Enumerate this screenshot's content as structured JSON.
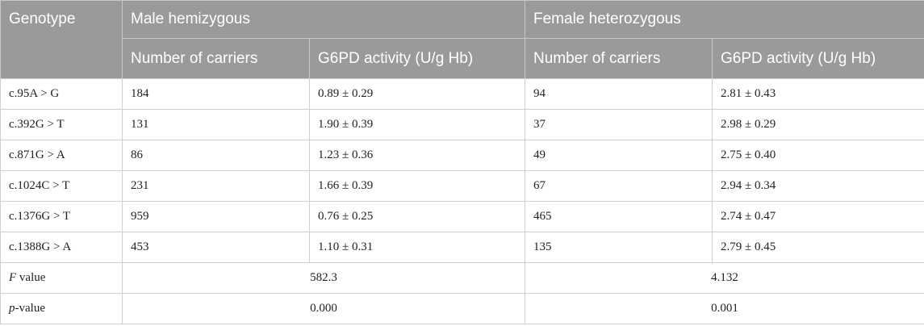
{
  "table": {
    "header": {
      "genotype": "Genotype",
      "group_male": "Male hemizygous",
      "group_female": "Female heterozygous",
      "sub_male_count": "Number of carriers",
      "sub_male_activity": "G6PD activity (U/g Hb)",
      "sub_female_count": "Number of carriers",
      "sub_female_activity": "G6PD activity (U/g Hb)"
    },
    "rows": [
      {
        "genotype": "c.95A > G",
        "male_count": "184",
        "male_activity": "0.89 ± 0.29",
        "female_count": "94",
        "female_activity": "2.81 ± 0.43"
      },
      {
        "genotype": "c.392G > T",
        "male_count": "131",
        "male_activity": "1.90 ± 0.39",
        "female_count": "37",
        "female_activity": "2.98 ± 0.29"
      },
      {
        "genotype": "c.871G > A",
        "male_count": "86",
        "male_activity": "1.23 ± 0.36",
        "female_count": "49",
        "female_activity": "2.75 ± 0.40"
      },
      {
        "genotype": "c.1024C > T",
        "male_count": "231",
        "male_activity": "1.66 ± 0.39",
        "female_count": "67",
        "female_activity": "2.94 ± 0.34"
      },
      {
        "genotype": "c.1376G > T",
        "male_count": "959",
        "male_activity": "0.76 ± 0.25",
        "female_count": "465",
        "female_activity": "2.74 ± 0.47"
      },
      {
        "genotype": "c.1388G > A",
        "male_count": "453",
        "male_activity": "1.10 ± 0.31",
        "female_count": "135",
        "female_activity": "2.79 ± 0.45"
      }
    ],
    "f_row": {
      "label_italic": "F",
      "label_rest": " value",
      "male": "582.3",
      "female": "4.132"
    },
    "p_row": {
      "label_italic": "p",
      "label_rest": "-value",
      "male": "0.000",
      "female": "0.001"
    }
  }
}
